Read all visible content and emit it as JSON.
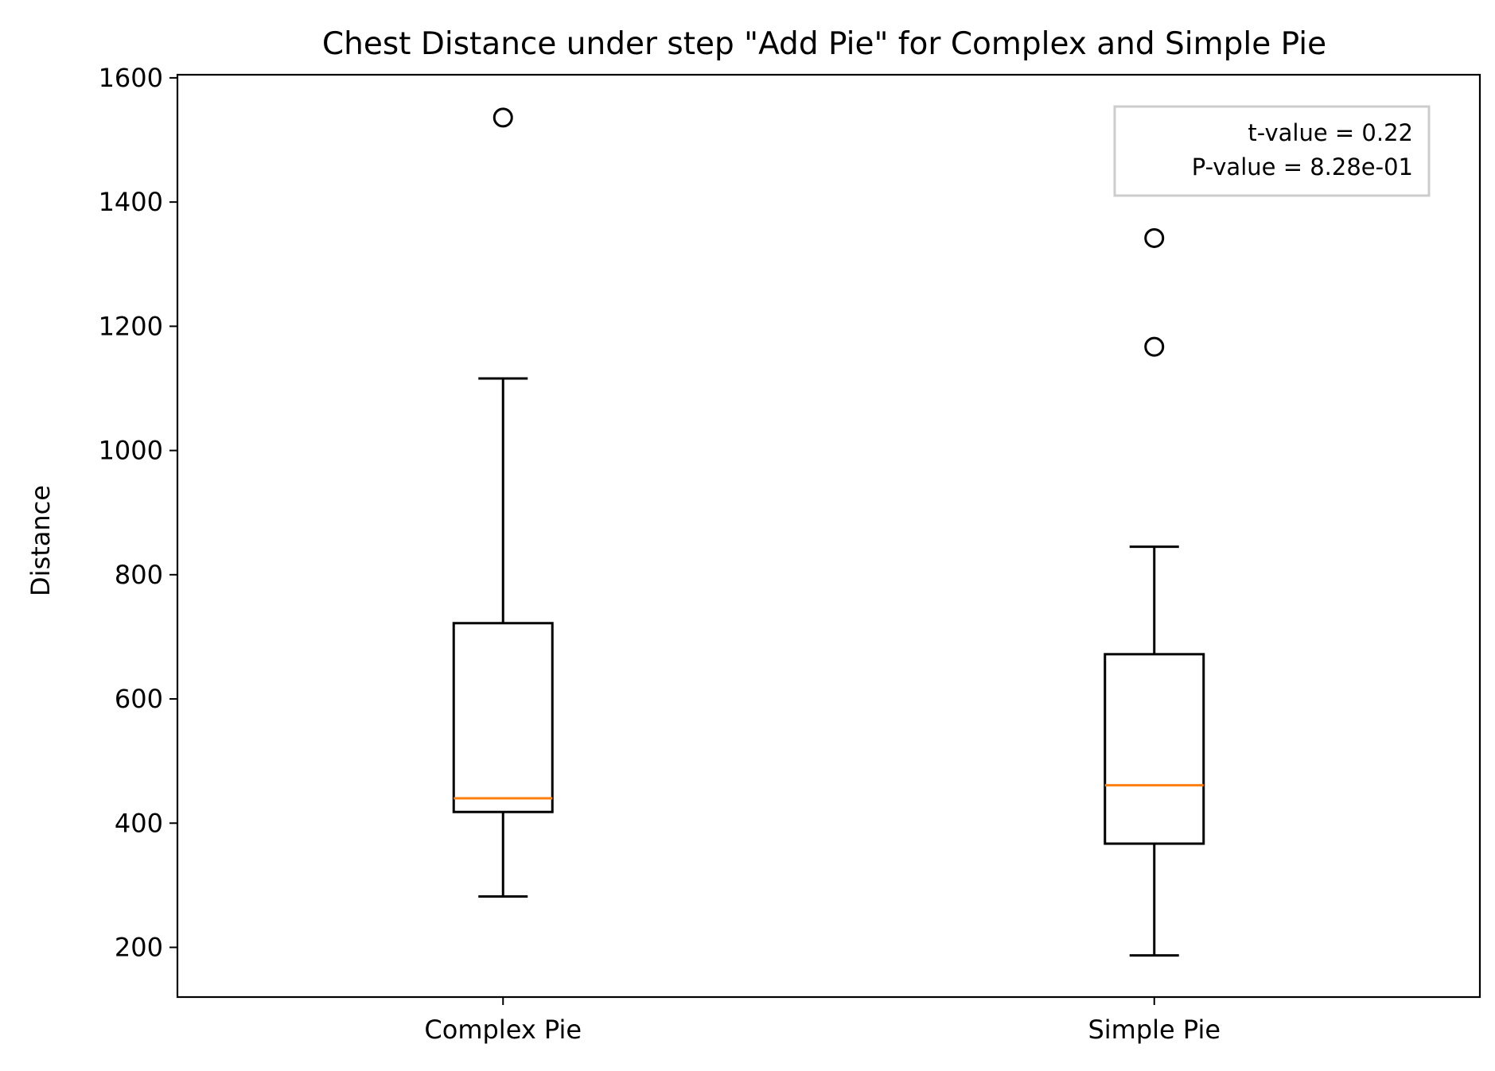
{
  "chart_data": {
    "type": "box",
    "title": "Chest Distance under step \"Add Pie\" for Complex and Simple Pie",
    "xlabel": "",
    "ylabel": "Distance",
    "ylim": [
      120,
      1605
    ],
    "yticks": [
      200,
      400,
      600,
      800,
      1000,
      1200,
      1400,
      1600
    ],
    "grid": false,
    "categories": [
      "Complex Pie",
      "Simple Pie"
    ],
    "boxes": [
      {
        "name": "Complex Pie",
        "whisker_low": 282,
        "q1": 418,
        "median": 440,
        "q3": 722,
        "whisker_high": 1116,
        "outliers": [
          1536
        ]
      },
      {
        "name": "Simple Pie",
        "whisker_low": 187,
        "q1": 367,
        "median": 461,
        "q3": 672,
        "whisker_high": 845,
        "outliers": [
          1342,
          1167
        ]
      }
    ],
    "annotation": {
      "position": "top-right",
      "lines": [
        "t-value = 0.22",
        "P-value = 8.28e-01"
      ]
    },
    "colors": {
      "box": "#000000",
      "median": "#ff7f0e",
      "annotation_border": "#cccccc"
    }
  }
}
